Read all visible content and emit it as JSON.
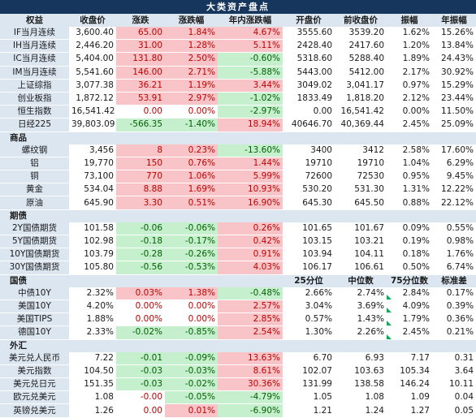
{
  "title": "大类资产盘点",
  "columns": [
    "权益",
    "收盘价",
    "涨跌",
    "涨跌幅",
    "年内涨跌幅",
    "开盘价",
    "前收盘价",
    "振幅",
    "年振幅"
  ],
  "equities": [
    {
      "name": "IF当月连续",
      "close": "3,600.40",
      "chg": "65.00",
      "pct": "1.84%",
      "ytd": "4.67%",
      "open": "3555.60",
      "prev": "3539.20",
      "amp": "1.62%",
      "yamp": "15.26%"
    },
    {
      "name": "IH当月连续",
      "close": "2,446.20",
      "chg": "31.00",
      "pct": "1.28%",
      "ytd": "5.11%",
      "open": "2428.40",
      "prev": "2417.60",
      "amp": "1.20%",
      "yamp": "13.84%"
    },
    {
      "name": "IC当月连续",
      "close": "5,404.00",
      "chg": "131.80",
      "pct": "2.50%",
      "ytd": "-0.60%",
      "open": "5318.60",
      "prev": "5288.40",
      "amp": "1.89%",
      "yamp": "24.43%"
    },
    {
      "name": "IM当月连续",
      "close": "5,541.60",
      "chg": "146.00",
      "pct": "2.71%",
      "ytd": "-5.88%",
      "open": "5443.00",
      "prev": "5412.00",
      "amp": "2.17%",
      "yamp": "30.92%"
    },
    {
      "name": "上证综指",
      "close": "3,077.38",
      "chg": "36.21",
      "pct": "1.19%",
      "ytd": "3.44%",
      "open": "3049.02",
      "prev": "3,041.17",
      "amp": "0.97%",
      "yamp": "15.29%"
    },
    {
      "name": "创业板指",
      "close": "1,872.12",
      "chg": "53.91",
      "pct": "2.97%",
      "ytd": "-1.02%",
      "open": "1833.49",
      "prev": "1,818.20",
      "amp": "2.12%",
      "yamp": "23.44%"
    },
    {
      "name": "恒生指数",
      "close": "16,541.42",
      "chg": "0.00",
      "pct": "0.00%",
      "ytd": "-2.97%",
      "open": "0.00",
      "prev": "16,541.42",
      "amp": "0.00%",
      "yamp": "11.50%"
    },
    {
      "name": "日经225",
      "close": "39,803.09",
      "chg": "-566.35",
      "pct": "-1.40%",
      "ytd": "18.94%",
      "open": "40646.70",
      "prev": "40,369.44",
      "amp": "2.45%",
      "yamp": "25.09%"
    }
  ],
  "commodities_label": "商品",
  "commodities": [
    {
      "name": "螺纹钢",
      "close": "3,456",
      "chg": "8",
      "pct": "0.23%",
      "ytd": "-13.60%",
      "open": "3400",
      "prev": "3412",
      "amp": "2.58%",
      "yamp": "17.60%"
    },
    {
      "name": "铝",
      "close": "19,770",
      "chg": "150",
      "pct": "0.76%",
      "ytd": "1.44%",
      "open": "19710",
      "prev": "19710",
      "amp": "1.04%",
      "yamp": "6.29%"
    },
    {
      "name": "铜",
      "close": "73,100",
      "chg": "770",
      "pck": "",
      "pct": "1.06%",
      "ytd": "5.99%",
      "open": "72600",
      "prev": "72530",
      "amp": "0.95%",
      "yamp": "9.45%"
    },
    {
      "name": "黄金",
      "close": "534.04",
      "chg": "8.88",
      "pct": "1.69%",
      "ytd": "10.93%",
      "open": "530.20",
      "prev": "531.30",
      "amp": "1.31%",
      "yamp": "12.22%"
    },
    {
      "name": "原油",
      "close": "645.90",
      "chg": "3.30",
      "pct": "0.51%",
      "ytd": "16.90%",
      "open": "645.30",
      "prev": "645.50",
      "amp": "0.88%",
      "yamp": "22.12%"
    }
  ],
  "futures_label": "期债",
  "futures": [
    {
      "name": "2Y国债期货",
      "close": "101.58",
      "chg": "-0.06",
      "pct": "-0.06%",
      "ytd": "0.26%",
      "open": "101.65",
      "prev": "101.67",
      "amp": "0.09%",
      "yamp": "0.55%"
    },
    {
      "name": "5Y国债期货",
      "close": "102.98",
      "chg": "-0.18",
      "pct": "-0.17%",
      "ytd": "0.42%",
      "open": "103.15",
      "prev": "103.21",
      "amp": "0.19%",
      "yamp": "0.98%"
    },
    {
      "name": "10Y国债期货",
      "close": "103.79",
      "chg": "-0.28",
      "pct": "-0.26%",
      "ytd": "0.91%",
      "open": "103.94",
      "prev": "104.11",
      "amp": "0.18%",
      "yamp": "1.76%"
    },
    {
      "name": "30Y国债期货",
      "close": "105.80",
      "chg": "-0.56",
      "pct": "-0.53%",
      "ytd": "4.03%",
      "open": "106.17",
      "prev": "106.61",
      "amp": "0.50%",
      "yamp": "6.74%"
    }
  ],
  "bonds_label": "国债",
  "bonds_cols": [
    "25分位",
    "中位数",
    "75分位数",
    "标准差"
  ],
  "bonds": [
    {
      "name": "中债10Y",
      "close": "2.32%",
      "chg": "0.03%",
      "pct": "1.38%",
      "ytd": "-0.48%",
      "q25": "2.66%",
      "med": "2.74%",
      "q75": "2.84%",
      "std": "0.17%"
    },
    {
      "name": "美国10Y",
      "close": "4.20%",
      "chg": "0.00%",
      "pct": "0.00%",
      "ytd": "2.57%",
      "q25": "3.04%",
      "med": "3.69%",
      "q75": "4.09%",
      "std": "0.39%"
    },
    {
      "name": "美国TIPS",
      "close": "1.88%",
      "chg": "0.00%",
      "pct": "0.00%",
      "ytd": "2.85%",
      "q25": "0.57%",
      "med": "1.43%",
      "q75": "1.79%",
      "std": "0.36%"
    },
    {
      "name": "德国10Y",
      "close": "2.33%",
      "chg": "-0.02%",
      "pct": "-0.85%",
      "ytd": "2.54%",
      "q25": "1.30%",
      "med": "2.26%",
      "q75": "2.45%",
      "std": "0.21%"
    }
  ],
  "fx_label": "外汇",
  "fx": [
    {
      "name": "美元兑人民币",
      "close": "7.22",
      "chg": "-0.01",
      "pct": "-0.09%",
      "ytd": "13.63%",
      "open": "6.70",
      "prev": "6.93",
      "amp": "7.17",
      "yamp": "0.31"
    },
    {
      "name": "美元指数",
      "close": "104.50",
      "chg": "-0.03",
      "pct": "-0.03%",
      "ytd": "8.61%",
      "open": "102.07",
      "prev": "103.63",
      "amp": "105.34",
      "yamp": "3.64"
    },
    {
      "name": "美元兑日元",
      "close": "151.35",
      "chg": "-0.03",
      "pct": "-0.02%",
      "ytd": "30.36%",
      "open": "131.99",
      "prev": "138.58",
      "amp": "146.24",
      "yamp": "10.11"
    },
    {
      "name": "欧元兑美元",
      "close": "1.08",
      "chg": "-0.00",
      "pct": "-0.05%",
      "ytd": "-4.79%",
      "open": "1.05",
      "prev": "1.08",
      "amp": "1.09",
      "yamp": "0.04"
    },
    {
      "name": "英镑兑美元",
      "close": "1.26",
      "chg": "0.00",
      "pct": "0.01%",
      "ytd": "-6.90%",
      "open": "1.21",
      "prev": "1.24",
      "amp": "1.27",
      "yamp": "0.05"
    }
  ]
}
